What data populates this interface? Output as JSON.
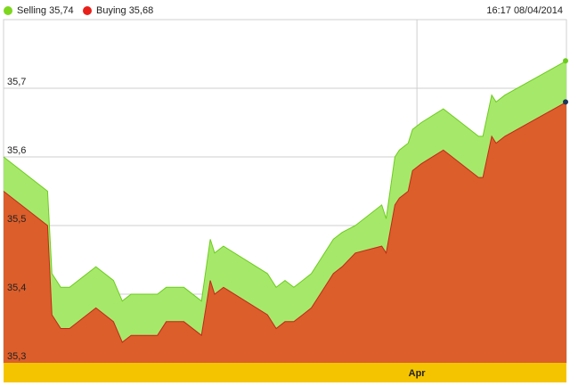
{
  "legend": {
    "selling": {
      "label": "Selling 35,74",
      "color": "#7dd71f"
    },
    "buying": {
      "label": "Buying 35,68",
      "color": "#e8201a"
    }
  },
  "timestamp": "16:17 08/04/2014",
  "chart_data": {
    "type": "area",
    "title": "",
    "xlabel": "",
    "ylabel": "",
    "ylim": [
      35.3,
      35.8
    ],
    "yticks": [
      35.3,
      35.4,
      35.5,
      35.6,
      35.7
    ],
    "ytick_labels": [
      "35,3",
      "35,4",
      "35,5",
      "35,6",
      "35,7"
    ],
    "xticks": [
      {
        "label": "Apr",
        "x": 94
      }
    ],
    "grid": true,
    "x": [
      0,
      10,
      11,
      13,
      15,
      21,
      25,
      27,
      29,
      35,
      37,
      41,
      45,
      47,
      48,
      50,
      60,
      62,
      64,
      66,
      68,
      70,
      72,
      75,
      77,
      80,
      86,
      87,
      89,
      90,
      92,
      93,
      95,
      100,
      108,
      109,
      111,
      112,
      114,
      128
    ],
    "series": [
      {
        "name": "Selling",
        "color": "#a6e96a",
        "line_color": "#6ccc1c",
        "values": [
          35.6,
          35.55,
          35.43,
          35.41,
          35.41,
          35.44,
          35.42,
          35.39,
          35.4,
          35.4,
          35.41,
          35.41,
          35.39,
          35.48,
          35.46,
          35.47,
          35.43,
          35.41,
          35.42,
          35.41,
          35.42,
          35.43,
          35.45,
          35.48,
          35.49,
          35.5,
          35.53,
          35.51,
          35.6,
          35.61,
          35.62,
          35.64,
          35.65,
          35.67,
          35.63,
          35.63,
          35.69,
          35.68,
          35.69,
          35.74
        ]
      },
      {
        "name": "Buying",
        "color": "#dc5e2b",
        "line_color": "#c2281a",
        "values": [
          35.55,
          35.5,
          35.37,
          35.35,
          35.35,
          35.38,
          35.36,
          35.33,
          35.34,
          35.34,
          35.36,
          35.36,
          35.34,
          35.42,
          35.4,
          35.41,
          35.37,
          35.35,
          35.36,
          35.36,
          35.37,
          35.38,
          35.4,
          35.43,
          35.44,
          35.46,
          35.47,
          35.46,
          35.53,
          35.54,
          35.55,
          35.58,
          35.59,
          35.61,
          35.57,
          35.57,
          35.63,
          35.62,
          35.63,
          35.68
        ]
      }
    ]
  }
}
